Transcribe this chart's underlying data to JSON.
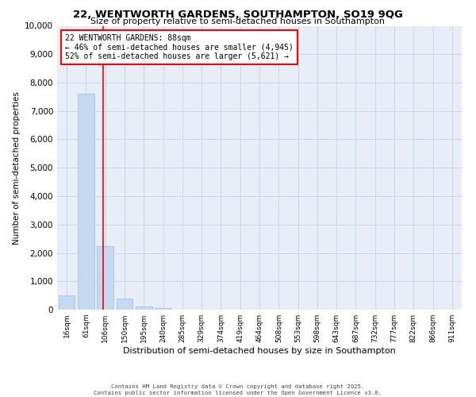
{
  "title": "22, WENTWORTH GARDENS, SOUTHAMPTON, SO19 9QG",
  "subtitle": "Size of property relative to semi-detached houses in Southampton",
  "xlabel": "Distribution of semi-detached houses by size in Southampton",
  "ylabel": "Number of semi-detached properties",
  "categories": [
    "16sqm",
    "61sqm",
    "106sqm",
    "150sqm",
    "195sqm",
    "240sqm",
    "285sqm",
    "329sqm",
    "374sqm",
    "419sqm",
    "464sqm",
    "508sqm",
    "553sqm",
    "598sqm",
    "643sqm",
    "687sqm",
    "732sqm",
    "777sqm",
    "822sqm",
    "866sqm",
    "911sqm"
  ],
  "values": [
    500,
    7600,
    2250,
    400,
    100,
    50,
    0,
    0,
    0,
    0,
    0,
    0,
    0,
    0,
    0,
    0,
    0,
    0,
    0,
    0,
    0
  ],
  "bar_color": "#c5d9f1",
  "bar_edge_color": "#9ab8de",
  "property_line_x": 1.87,
  "annotation_text": "22 WENTWORTH GARDENS: 88sqm\n← 46% of semi-detached houses are smaller (4,945)\n52% of semi-detached houses are larger (5,621) →",
  "annotation_box_color": "white",
  "annotation_box_edge": "red",
  "red_line_color": "red",
  "grid_color": "#c8d4e8",
  "background_color": "#e8eef8",
  "footer_line1": "Contains HM Land Registry data © Crown copyright and database right 2025.",
  "footer_line2": "Contains public sector information licensed under the Open Government Licence v3.0.",
  "ylim": [
    0,
    10000
  ],
  "yticks": [
    0,
    1000,
    2000,
    3000,
    4000,
    5000,
    6000,
    7000,
    8000,
    9000,
    10000
  ]
}
